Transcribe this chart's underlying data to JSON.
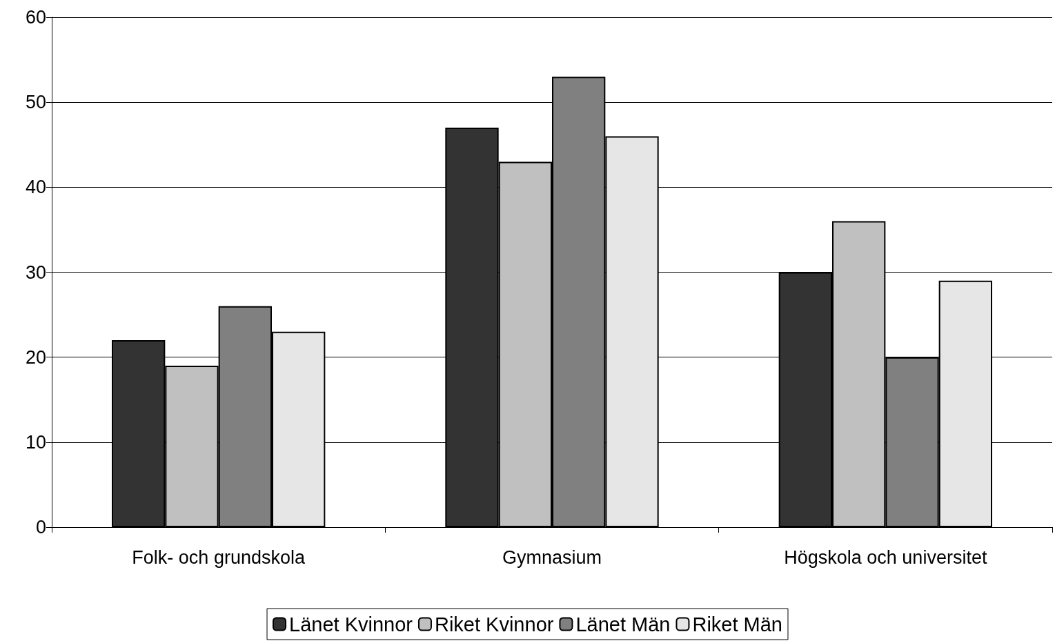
{
  "chart_data": {
    "type": "bar",
    "categories": [
      "Folk- och grundskola",
      "Gymnasium",
      "Högskola och universitet"
    ],
    "series": [
      {
        "name": "Länet Kvinnor",
        "color": "#333333",
        "values": [
          22,
          47,
          30
        ]
      },
      {
        "name": "Riket Kvinnor",
        "color": "#c0c0c0",
        "values": [
          19,
          43,
          36
        ]
      },
      {
        "name": "Länet Män",
        "color": "#808080",
        "values": [
          26,
          53,
          20
        ]
      },
      {
        "name": "Riket Män",
        "color": "#e6e6e6",
        "values": [
          23,
          46,
          29
        ]
      }
    ],
    "ylim": [
      0,
      60
    ],
    "yticks": [
      0,
      10,
      20,
      30,
      40,
      50,
      60
    ],
    "grid": "y",
    "legend": "bottom"
  }
}
